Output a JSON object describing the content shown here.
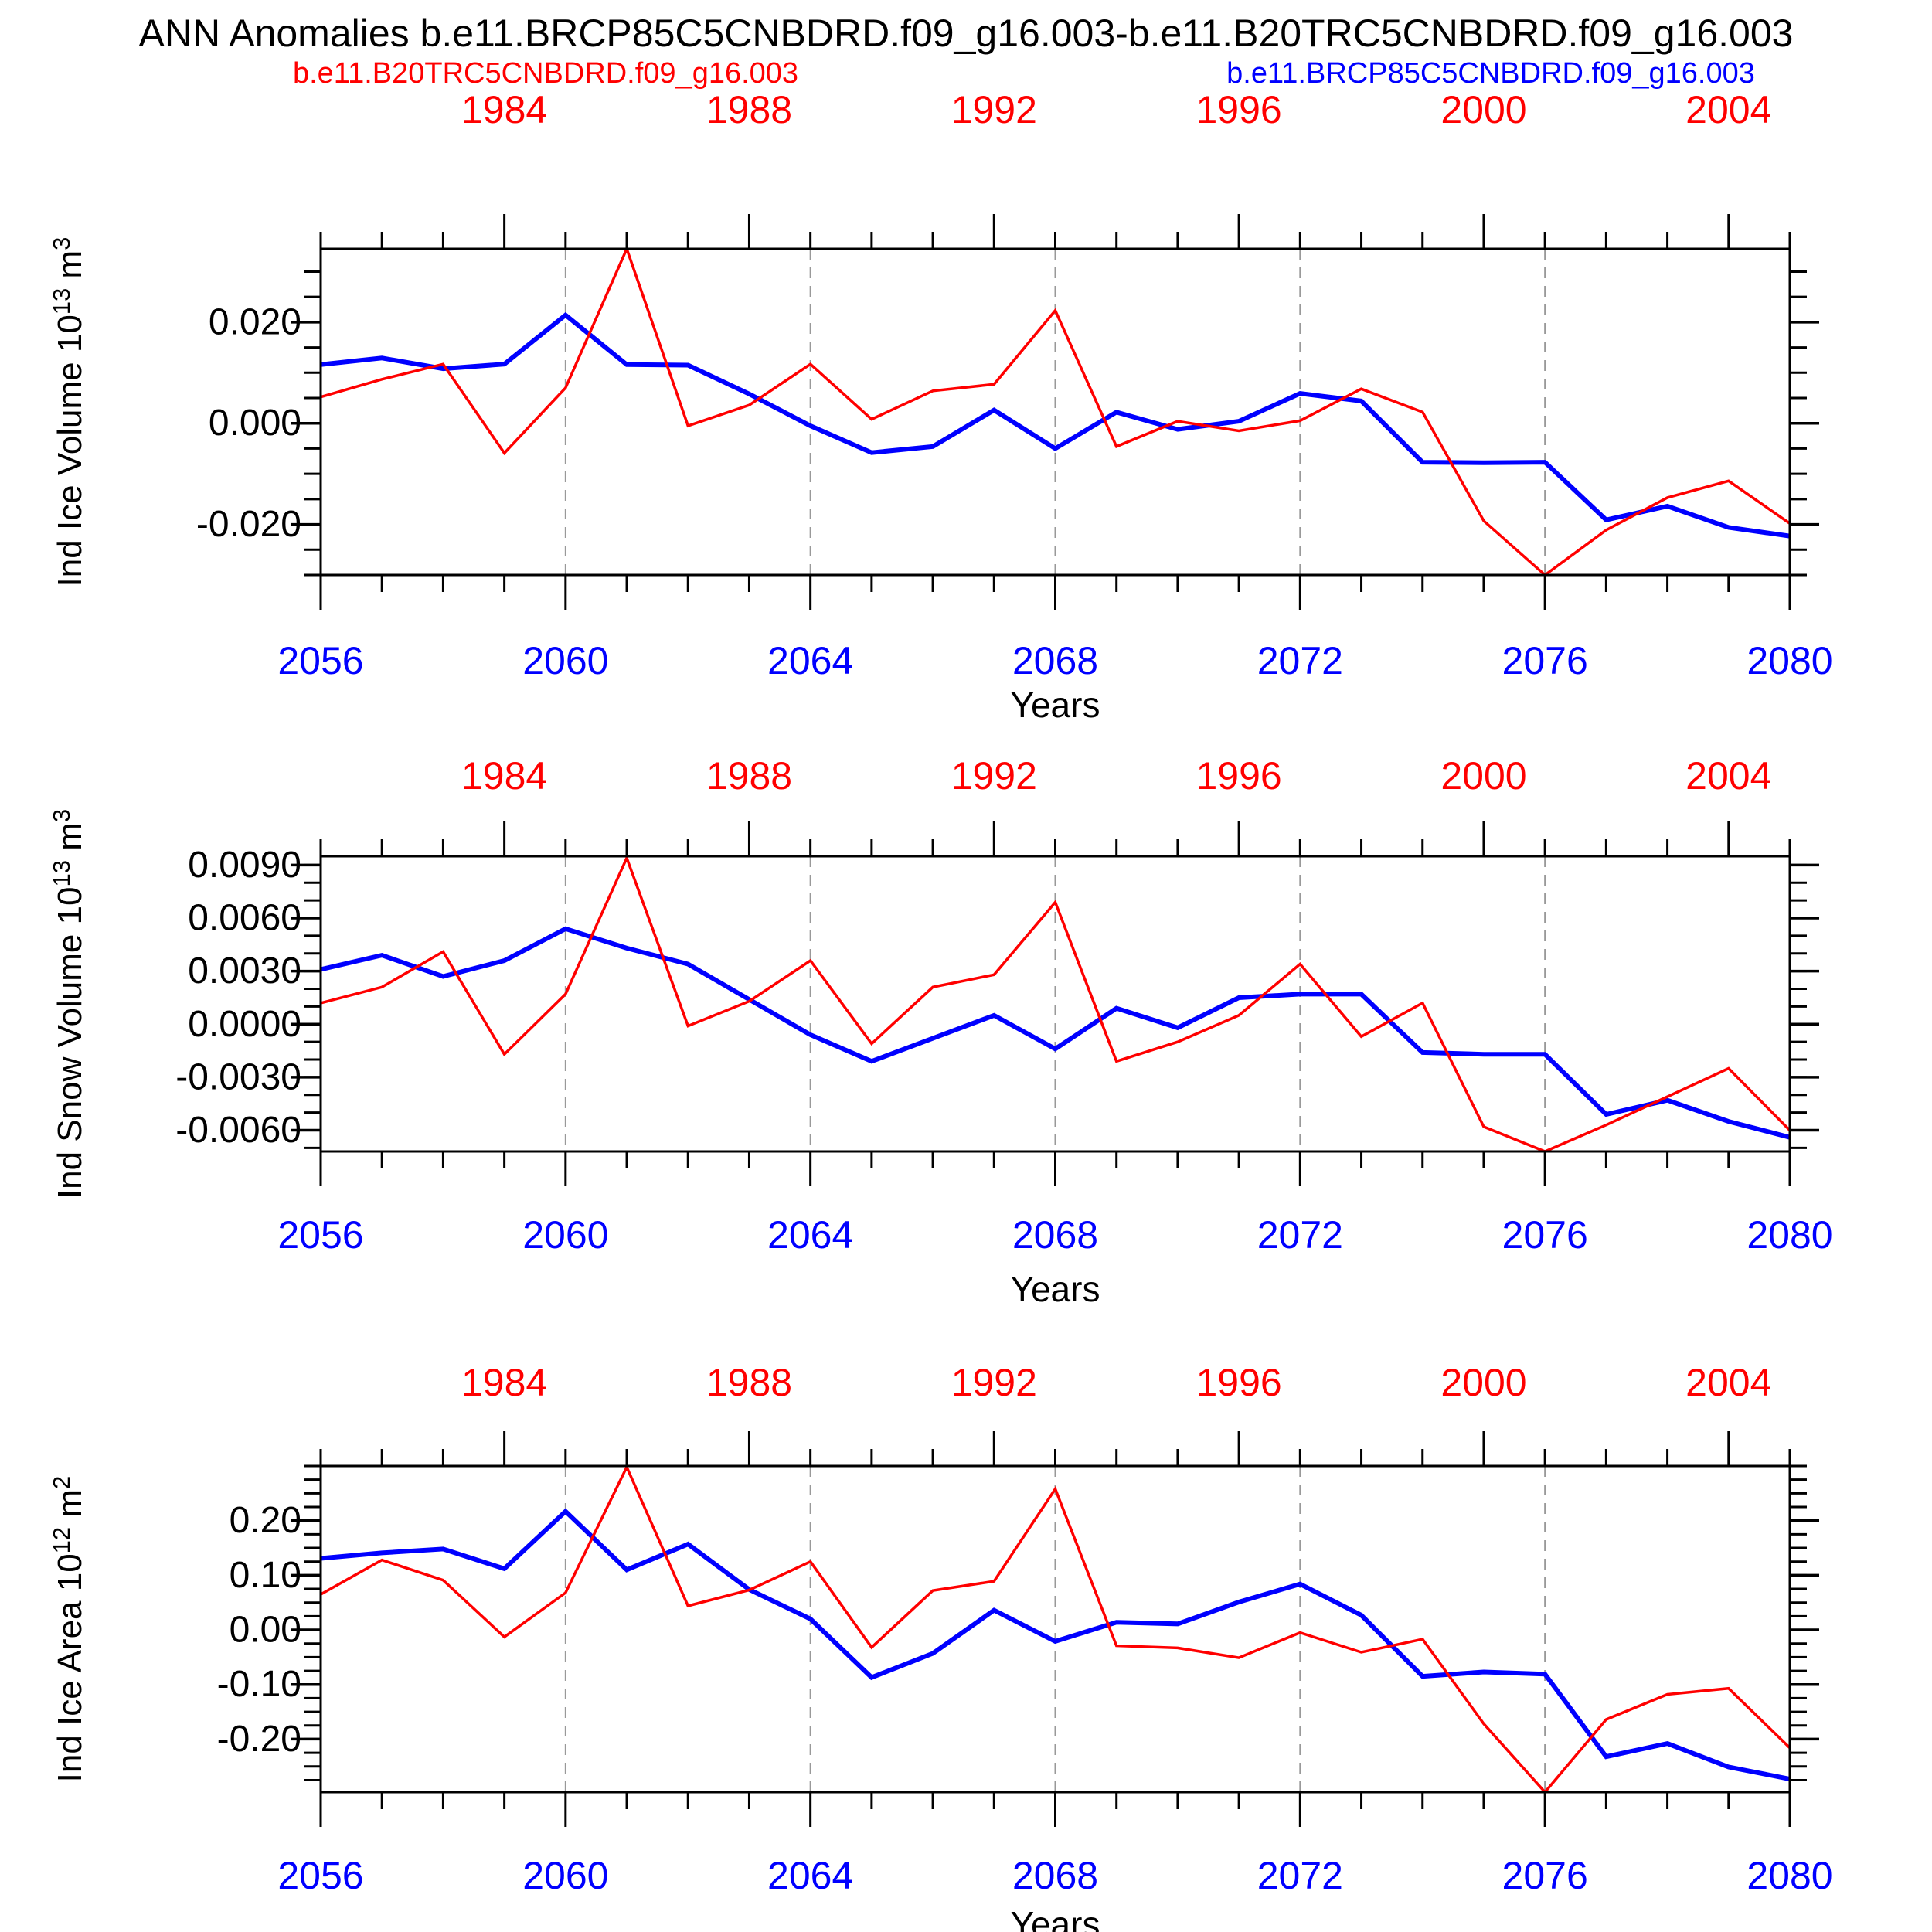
{
  "title": "ANN Anomalies b.e11.BRCP85C5CNBDRD.f09_g16.003-b.e11.B20TRC5CNBDRD.f09_g16.003",
  "legend": {
    "red_label": "b.e11.B20TRC5CNBDRD.f09_g16.003",
    "blue_label": "b.e11.BRCP85C5CNBDRD.f09_g16.003"
  },
  "colors": {
    "red": "#ff0000",
    "blue": "#0000ff",
    "axis": "#000000",
    "grid": "#999999",
    "top_year_labels": "#ff0000",
    "bottom_year_labels": "#0000ff"
  },
  "x_axis": {
    "bottom_label": "Years",
    "bottom_range": [
      2056,
      2080
    ],
    "bottom_major_ticks": [
      2056,
      2060,
      2064,
      2068,
      2072,
      2076,
      2080
    ],
    "top_range": [
      1981,
      2005
    ],
    "top_major_ticks": [
      1984,
      1988,
      1992,
      1996,
      2000,
      2004
    ],
    "grid_years": [
      2060,
      2064,
      2068,
      2072,
      2076
    ]
  },
  "chart_data": [
    {
      "type": "line",
      "ylabel": "Ind Ice Volume 10^13 m^3",
      "ylabel_parts": [
        {
          "t": "Ind Ice Volume 10"
        },
        {
          "t": "13",
          "sup": true
        },
        {
          "t": " m"
        },
        {
          "t": "3",
          "sup": true
        }
      ],
      "ylim": [
        -0.03,
        0.0345
      ],
      "minor_step": 0.005,
      "yticks": [
        {
          "v": 0.02,
          "label": "0.020"
        },
        {
          "v": 0.0,
          "label": "0.000"
        },
        {
          "v": -0.02,
          "label": "-0.020"
        }
      ],
      "series": [
        {
          "name": "b.e11.BRCP85C5CNBDRD.f09_g16.003",
          "color": "blue",
          "x_axis": "bottom",
          "x_start": 2056,
          "values": [
            0.0116,
            0.0129,
            0.0108,
            0.0117,
            0.0214,
            0.0116,
            0.0115,
            0.0058,
            -0.0005,
            -0.0058,
            -0.0046,
            0.0026,
            -0.005,
            0.0022,
            -0.0012,
            0.0004,
            0.0059,
            0.0044,
            -0.0077,
            -0.0078,
            -0.0077,
            -0.0191,
            -0.0164,
            -0.0206,
            -0.0223
          ]
        },
        {
          "name": "b.e11.B20TRC5CNBDRD.f09_g16.003",
          "color": "red",
          "x_axis": "top",
          "x_start": 1981,
          "values": [
            0.0052,
            0.0087,
            0.0117,
            -0.0059,
            0.007,
            0.0345,
            -0.0005,
            0.0036,
            0.0117,
            0.0008,
            0.0064,
            0.0077,
            0.0223,
            -0.0046,
            0.0004,
            -0.0015,
            0.0005,
            0.0068,
            0.0022,
            -0.0193,
            -0.03,
            -0.0211,
            -0.0147,
            -0.0114,
            -0.0198
          ]
        }
      ]
    },
    {
      "type": "line",
      "ylabel": "Ind Snow Volume 10^13 m^3",
      "ylabel_parts": [
        {
          "t": "Ind Snow Volume 10"
        },
        {
          "t": "13",
          "sup": true
        },
        {
          "t": " m"
        },
        {
          "t": "3",
          "sup": true
        }
      ],
      "ylim": [
        -0.0072,
        0.0095
      ],
      "minor_step": 0.001,
      "yticks": [
        {
          "v": 0.009,
          "label": "0.0090"
        },
        {
          "v": 0.006,
          "label": "0.0060"
        },
        {
          "v": 0.003,
          "label": "0.0030"
        },
        {
          "v": 0.0,
          "label": "0.0000"
        },
        {
          "v": -0.003,
          "label": "-0.0030"
        },
        {
          "v": -0.006,
          "label": "-0.0060"
        }
      ],
      "series": [
        {
          "name": "b.e11.BRCP85C5CNBDRD.f09_g16.003",
          "color": "blue",
          "x_axis": "bottom",
          "x_start": 2056,
          "values": [
            0.0031,
            0.0039,
            0.0027,
            0.0036,
            0.0054,
            0.0043,
            0.0034,
            0.0014,
            -0.0006,
            -0.0021,
            -0.0008,
            0.0005,
            -0.0014,
            0.0009,
            -0.0002,
            0.0015,
            0.0017,
            0.0017,
            -0.0016,
            -0.0017,
            -0.0017,
            -0.0051,
            -0.0043,
            -0.0055,
            -0.0064
          ]
        },
        {
          "name": "b.e11.B20TRC5CNBDRD.f09_g16.003",
          "color": "red",
          "x_axis": "top",
          "x_start": 1981,
          "values": [
            0.0012,
            0.0021,
            0.0041,
            -0.0017,
            0.0017,
            0.0094,
            -0.0001,
            0.0013,
            0.0036,
            -0.0011,
            0.0021,
            0.0028,
            0.0069,
            -0.0021,
            -0.001,
            0.0005,
            0.0034,
            -0.0007,
            0.0012,
            -0.0058,
            -0.0072,
            -0.0057,
            -0.0041,
            -0.0025,
            -0.006
          ]
        }
      ]
    },
    {
      "type": "line",
      "ylabel": "Ind Ice Area 10^12 m^2",
      "ylabel_parts": [
        {
          "t": "Ind Ice Area 10"
        },
        {
          "t": "12",
          "sup": true
        },
        {
          "t": " m"
        },
        {
          "t": "2",
          "sup": true
        }
      ],
      "ylim": [
        -0.297,
        0.3
      ],
      "minor_step": 0.025,
      "yticks": [
        {
          "v": 0.2,
          "label": "0.20"
        },
        {
          "v": 0.1,
          "label": "0.10"
        },
        {
          "v": 0.0,
          "label": "0.00"
        },
        {
          "v": -0.1,
          "label": "-0.10"
        },
        {
          "v": -0.2,
          "label": "-0.20"
        }
      ],
      "series": [
        {
          "name": "b.e11.BRCP85C5CNBDRD.f09_g16.003",
          "color": "blue",
          "x_axis": "bottom",
          "x_start": 2056,
          "values": [
            0.131,
            0.141,
            0.148,
            0.112,
            0.217,
            0.11,
            0.157,
            0.074,
            0.02,
            -0.087,
            -0.043,
            0.036,
            -0.021,
            0.014,
            0.011,
            0.051,
            0.084,
            0.027,
            -0.085,
            -0.077,
            -0.081,
            -0.232,
            -0.208,
            -0.251,
            -0.273
          ]
        },
        {
          "name": "b.e11.B20TRC5CNBDRD.f09_g16.003",
          "color": "red",
          "x_axis": "top",
          "x_start": 1981,
          "values": [
            0.065,
            0.128,
            0.091,
            -0.013,
            0.068,
            0.298,
            0.044,
            0.073,
            0.125,
            -0.032,
            0.072,
            0.089,
            0.258,
            -0.029,
            -0.033,
            -0.051,
            -0.005,
            -0.041,
            -0.017,
            -0.172,
            -0.297,
            -0.164,
            -0.118,
            -0.107,
            -0.216
          ]
        }
      ]
    }
  ]
}
